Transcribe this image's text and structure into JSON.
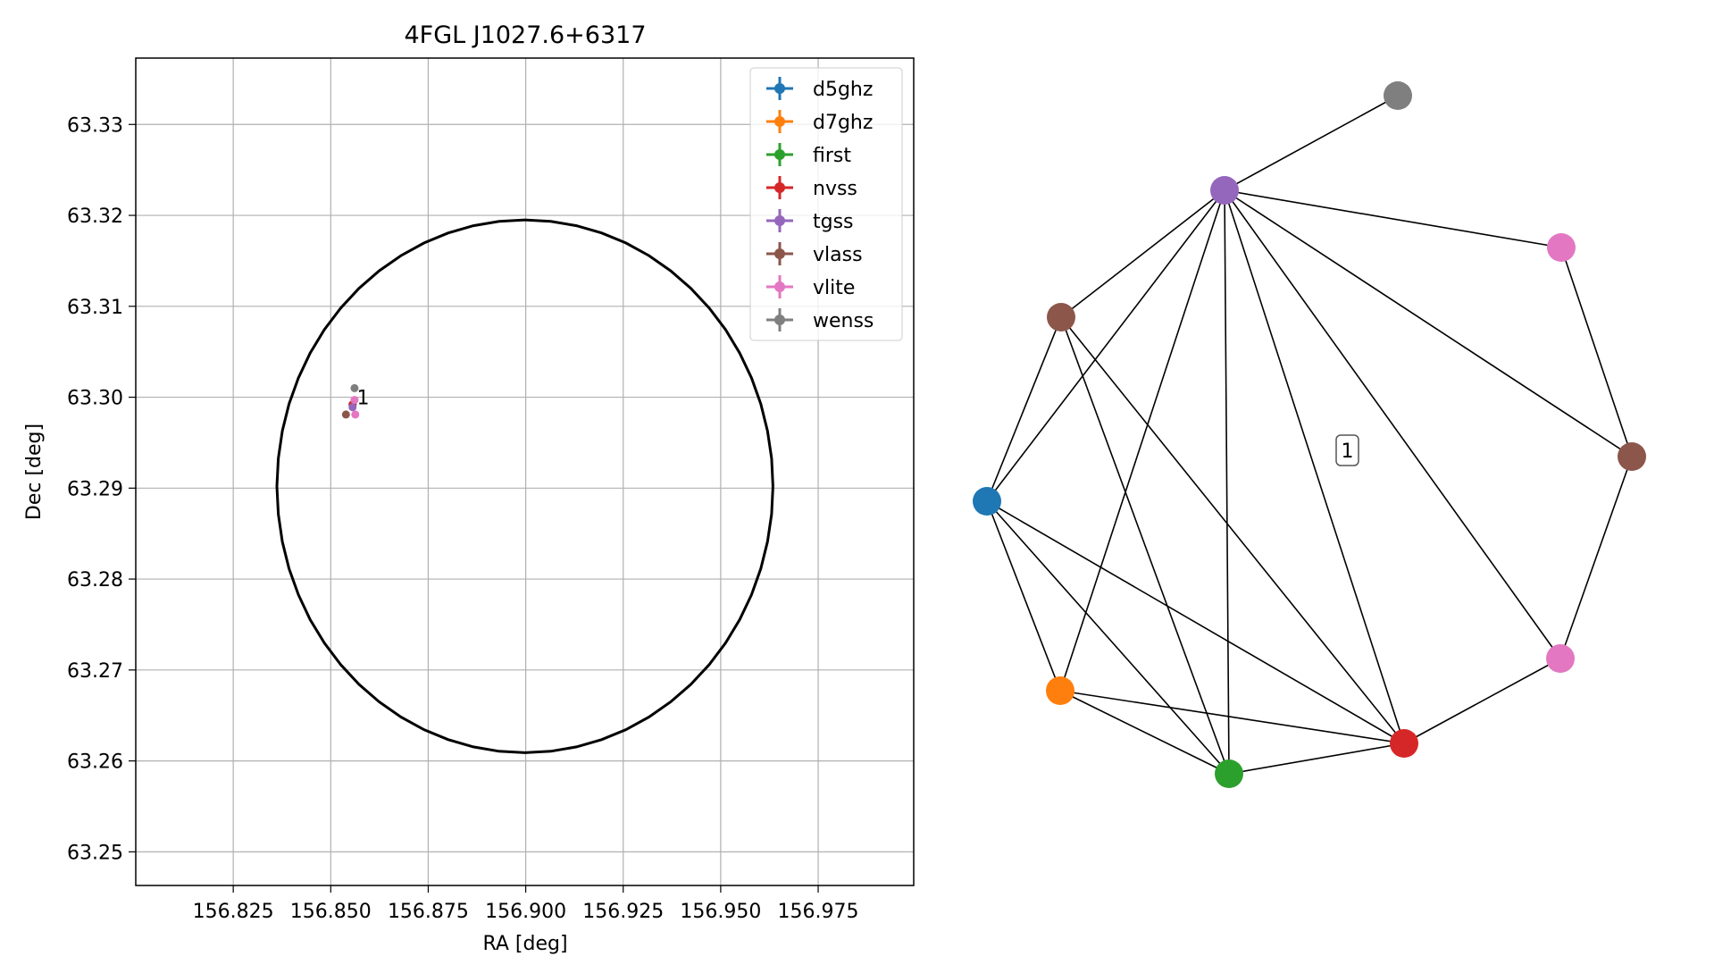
{
  "chart_data": [
    {
      "type": "scatter",
      "title": "4FGL J1027.6+6317",
      "xlabel": "RA [deg]",
      "ylabel": "Dec [deg]",
      "xlim": [
        156.8,
        156.9995
      ],
      "ylim": [
        63.2463,
        63.3373
      ],
      "xticks": [
        "156.825",
        "156.850",
        "156.875",
        "156.900",
        "156.925",
        "156.950",
        "156.975"
      ],
      "yticks": [
        "63.25",
        "63.26",
        "63.27",
        "63.28",
        "63.29",
        "63.30",
        "63.31",
        "63.32",
        "63.33"
      ],
      "grid": true,
      "legend_position": "upper right",
      "circle": {
        "center_ra": 156.8998,
        "center_dec": 63.2902,
        "radius_ra": 0.0636,
        "radius_dec": 0.0293
      },
      "annotation": {
        "text": "1",
        "ra": 156.8567,
        "dec": 63.3
      },
      "series": [
        {
          "name": "d5ghz",
          "color": "#1f77b4",
          "points": [
            [
              156.8556,
              63.2992
            ]
          ]
        },
        {
          "name": "d7ghz",
          "color": "#ff7f0e",
          "points": [
            [
              156.8556,
              63.2992
            ]
          ]
        },
        {
          "name": "first",
          "color": "#2ca02c",
          "points": [
            [
              156.8556,
              63.2992
            ]
          ]
        },
        {
          "name": "nvss",
          "color": "#d62728",
          "points": [
            [
              156.8556,
              63.2992
            ]
          ]
        },
        {
          "name": "tgss",
          "color": "#9467bd",
          "points": [
            [
              156.8556,
              63.2989
            ]
          ]
        },
        {
          "name": "vlass",
          "color": "#8c564b",
          "points": [
            [
              156.8539,
              63.2981
            ]
          ]
        },
        {
          "name": "vlite",
          "color": "#e377c2",
          "points": [
            [
              156.8561,
              63.2997
            ],
            [
              156.8563,
              63.2981
            ]
          ]
        },
        {
          "name": "wenss",
          "color": "#7f7f7f",
          "points": [
            [
              156.8561,
              63.301
            ]
          ]
        }
      ]
    },
    {
      "type": "network",
      "label": "1",
      "nodes": [
        {
          "id": "gray",
          "color": "#7f7f7f"
        },
        {
          "id": "purple",
          "color": "#9467bd"
        },
        {
          "id": "pink1",
          "color": "#e377c2"
        },
        {
          "id": "brown1",
          "color": "#8c564b"
        },
        {
          "id": "brown2",
          "color": "#8c564b"
        },
        {
          "id": "blue",
          "color": "#1f77b4"
        },
        {
          "id": "pink2",
          "color": "#e377c2"
        },
        {
          "id": "orange",
          "color": "#ff7f0e"
        },
        {
          "id": "red",
          "color": "#d62728"
        },
        {
          "id": "green",
          "color": "#2ca02c"
        }
      ],
      "edges": [
        [
          "purple",
          "gray"
        ],
        [
          "purple",
          "pink1"
        ],
        [
          "purple",
          "brown1"
        ],
        [
          "purple",
          "brown2"
        ],
        [
          "purple",
          "blue"
        ],
        [
          "purple",
          "orange"
        ],
        [
          "purple",
          "green"
        ],
        [
          "purple",
          "red"
        ],
        [
          "purple",
          "pink2"
        ],
        [
          "pink1",
          "brown2"
        ],
        [
          "brown2",
          "pink2"
        ],
        [
          "pink2",
          "red"
        ],
        [
          "brown1",
          "blue"
        ],
        [
          "brown1",
          "green"
        ],
        [
          "brown1",
          "red"
        ],
        [
          "blue",
          "orange"
        ],
        [
          "blue",
          "green"
        ],
        [
          "blue",
          "red"
        ],
        [
          "orange",
          "green"
        ],
        [
          "orange",
          "red"
        ],
        [
          "green",
          "red"
        ]
      ]
    }
  ]
}
